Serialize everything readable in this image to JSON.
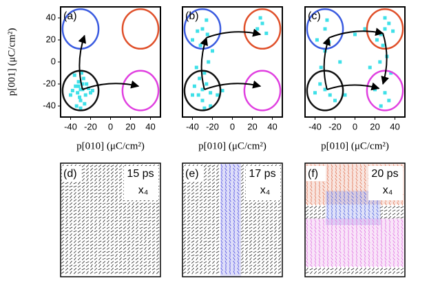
{
  "chart_data": [
    {
      "type": "scatter",
      "panel_label": "(a)",
      "ylabel": "p[001] (μC/cm²)",
      "xlabel": "p[010] (μC/cm²)",
      "color": "#3fe0e8",
      "xlim": [
        -50,
        50
      ],
      "ylim": [
        -50,
        50
      ],
      "xticks": [
        -40,
        -20,
        0,
        20,
        40
      ],
      "yticks": [
        -40,
        -20,
        0,
        20,
        40
      ],
      "x": [
        -30,
        -28,
        -33,
        -25,
        -35,
        -22,
        -30,
        -38,
        -27,
        -20,
        -32,
        -40,
        -26,
        -29,
        -34,
        -24,
        -31,
        -18,
        -36,
        -30,
        -28,
        -32
      ],
      "y": [
        -25,
        -20,
        -28,
        -30,
        -22,
        -24,
        -35,
        -26,
        -15,
        -28,
        -18,
        -30,
        -38,
        -10,
        -40,
        -20,
        -32,
        -26,
        -12,
        -42,
        -25,
        -22
      ],
      "circles": [
        {
          "cx": -30,
          "cy": 30,
          "r": 18,
          "color": "#3a5be0"
        },
        {
          "cx": 30,
          "cy": 30,
          "r": 18,
          "color": "#e0502a"
        },
        {
          "cx": -30,
          "cy": -26,
          "r": 18,
          "color": "#111111"
        },
        {
          "cx": 30,
          "cy": -26,
          "r": 18,
          "color": "#e040e0"
        }
      ],
      "arrows": [
        [
          -28,
          -25,
          -26,
          24
        ],
        [
          -28,
          -25,
          28,
          -22
        ]
      ]
    },
    {
      "type": "scatter",
      "panel_label": "(b)",
      "xlabel": "p[010] (μC/cm²)",
      "color": "#3fe0e8",
      "xlim": [
        -50,
        50
      ],
      "ylim": [
        -50,
        50
      ],
      "xticks": [
        -40,
        -20,
        0,
        20,
        40
      ],
      "yticks": [
        -40,
        -20,
        0,
        20,
        40
      ],
      "x": [
        -30,
        -26,
        -34,
        -22,
        -38,
        -30,
        -28,
        -24,
        -36,
        -20,
        -32,
        -40,
        -30,
        -26,
        -35,
        -25,
        -22,
        -33,
        -40,
        -28,
        25,
        30,
        34,
        28,
        -10,
        -15
      ],
      "y": [
        -25,
        -20,
        -30,
        -28,
        -22,
        -35,
        -10,
        0,
        -5,
        10,
        15,
        20,
        30,
        38,
        28,
        25,
        -40,
        -15,
        -30,
        -42,
        30,
        35,
        26,
        40,
        -26,
        -30
      ],
      "circles": [
        {
          "cx": -30,
          "cy": 30,
          "r": 18,
          "color": "#3a5be0"
        },
        {
          "cx": 30,
          "cy": 30,
          "r": 18,
          "color": "#e0502a"
        },
        {
          "cx": -30,
          "cy": -26,
          "r": 18,
          "color": "#111111"
        },
        {
          "cx": 30,
          "cy": -26,
          "r": 18,
          "color": "#e040e0"
        }
      ],
      "arrows": [
        [
          -28,
          -25,
          -26,
          22
        ],
        [
          -26,
          22,
          28,
          25
        ],
        [
          -28,
          -25,
          28,
          -22
        ]
      ]
    },
    {
      "type": "scatter",
      "panel_label": "(c)",
      "xlabel": "p[010] (μC/cm²)",
      "color": "#3fe0e8",
      "xlim": [
        -50,
        50
      ],
      "ylim": [
        -50,
        50
      ],
      "xticks": [
        -40,
        -20,
        0,
        20,
        40
      ],
      "yticks": [
        -40,
        -20,
        0,
        20,
        40
      ],
      "x": [
        -30,
        -25,
        -35,
        -20,
        -40,
        -30,
        -28,
        30,
        26,
        34,
        22,
        38,
        30,
        28,
        32,
        25,
        36,
        20,
        -10,
        0,
        10,
        -15,
        15,
        -30,
        -34,
        -26,
        30,
        34,
        26,
        -38
      ],
      "y": [
        -25,
        -30,
        -20,
        -35,
        -28,
        30,
        38,
        30,
        25,
        35,
        20,
        28,
        40,
        15,
        5,
        0,
        -10,
        -25,
        -30,
        25,
        30,
        0,
        -5,
        10,
        -5,
        18,
        -28,
        -35,
        -40,
        20
      ],
      "circles": [
        {
          "cx": -30,
          "cy": 30,
          "r": 18,
          "color": "#3a5be0"
        },
        {
          "cx": 30,
          "cy": 30,
          "r": 18,
          "color": "#e0502a"
        },
        {
          "cx": -30,
          "cy": -26,
          "r": 18,
          "color": "#111111"
        },
        {
          "cx": 30,
          "cy": -26,
          "r": 18,
          "color": "#e040e0"
        }
      ],
      "arrows": [
        [
          -28,
          -25,
          -26,
          22
        ],
        [
          -26,
          22,
          28,
          26
        ],
        [
          28,
          26,
          28,
          -20
        ],
        [
          -28,
          -25,
          24,
          -24
        ]
      ]
    }
  ],
  "snapshots": [
    {
      "label": "(d)",
      "time": "15 ps",
      "scale": "x₄"
    },
    {
      "label": "(e)",
      "time": "17 ps",
      "scale": "x₄"
    },
    {
      "label": "(f)",
      "time": "20 ps",
      "scale": "x₄"
    }
  ]
}
